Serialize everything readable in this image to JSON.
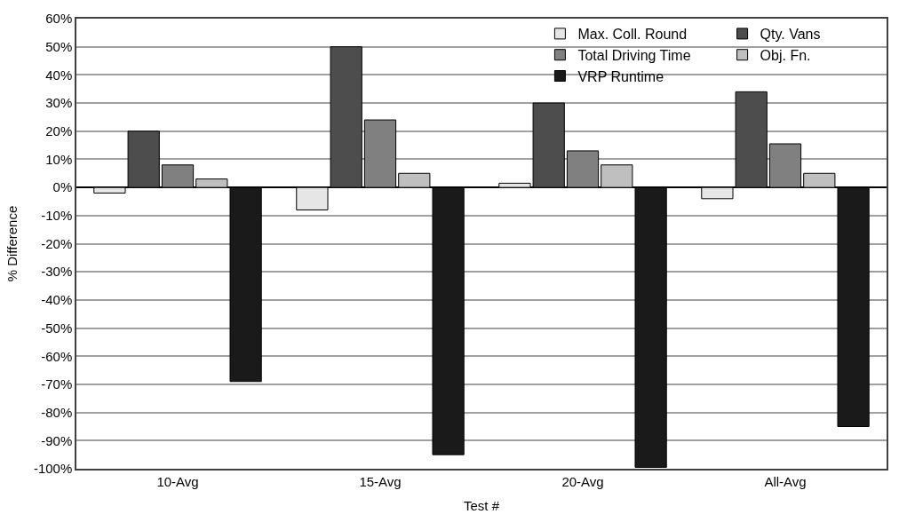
{
  "chart_data": {
    "type": "bar",
    "xlabel": "Test #",
    "ylabel": "% Difference",
    "categories": [
      "10-Avg",
      "15-Avg",
      "20-Avg",
      "All-Avg"
    ],
    "series": [
      {
        "name": "Max. Coll. Round",
        "color": "#e6e6e6",
        "values": [
          -2,
          -8,
          1.5,
          -4
        ]
      },
      {
        "name": "Qty. Vans",
        "color": "#4d4d4d",
        "values": [
          20,
          50,
          30,
          34
        ]
      },
      {
        "name": "Total Driving Time",
        "color": "#808080",
        "values": [
          8,
          24,
          13,
          15.5
        ]
      },
      {
        "name": "Obj. Fn.",
        "color": "#bfbfbf",
        "values": [
          3,
          5,
          8,
          5
        ]
      },
      {
        "name": "VRP Runtime",
        "color": "#1a1a1a",
        "values": [
          -69,
          -95,
          -99.5,
          -85
        ]
      }
    ],
    "ylim": [
      -100,
      60
    ],
    "yticks": [
      {
        "value": -100,
        "label": "-100%"
      },
      {
        "value": -90,
        "label": "-90%"
      },
      {
        "value": -80,
        "label": "-80%"
      },
      {
        "value": -70,
        "label": "-70%"
      },
      {
        "value": -60,
        "label": "-60%"
      },
      {
        "value": -50,
        "label": "-50%"
      },
      {
        "value": -40,
        "label": "-40%"
      },
      {
        "value": -30,
        "label": "-30%"
      },
      {
        "value": -20,
        "label": "-20%"
      },
      {
        "value": -10,
        "label": "-10%"
      },
      {
        "value": 0,
        "label": "0%"
      },
      {
        "value": 10,
        "label": "10%"
      },
      {
        "value": 20,
        "label": "20%"
      },
      {
        "value": 30,
        "label": "30%"
      },
      {
        "value": 40,
        "label": "40%"
      },
      {
        "value": 50,
        "label": "50%"
      },
      {
        "value": 60,
        "label": "60%"
      }
    ],
    "grid": "y",
    "legend": "top right"
  }
}
